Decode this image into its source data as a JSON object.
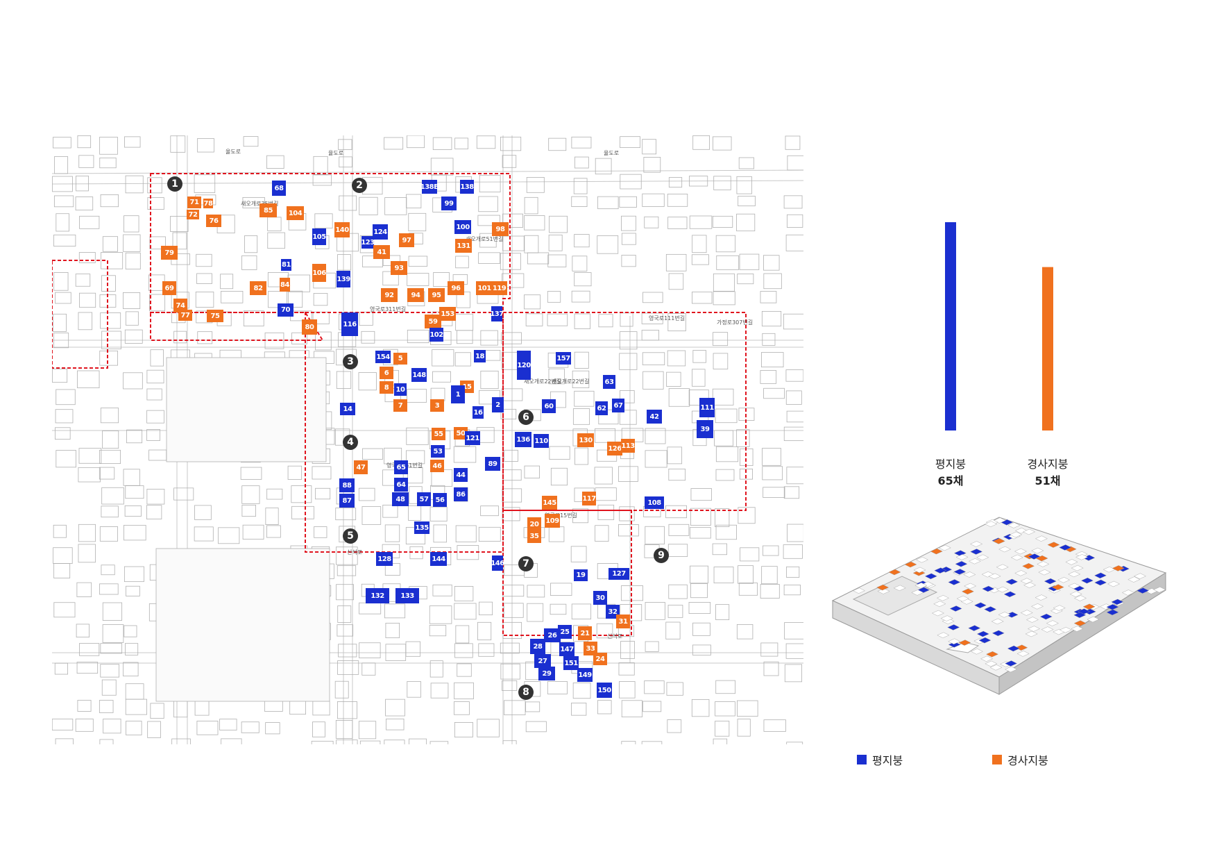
{
  "colors": {
    "flat": "#1a2fd0",
    "sloped": "#f0711e",
    "boundary": "#e0141e"
  },
  "blocks": [
    "1",
    "2",
    "3",
    "4",
    "5",
    "6",
    "7",
    "8",
    "9"
  ],
  "streets": [
    "율도로",
    "율도로",
    "율도로",
    "새오개로35번길",
    "새오개로51번길",
    "영국로311번길",
    "영국로111번길",
    "가정로307번길",
    "새오개로22번길",
    "영국로161번길",
    "영국로15번길",
    "신석로",
    "신석로",
    "새오개로22번길"
  ],
  "buildings": [
    {
      "id": "68",
      "roof": "flat"
    },
    {
      "id": "71",
      "roof": "sloped"
    },
    {
      "id": "78",
      "roof": "sloped"
    },
    {
      "id": "72",
      "roof": "sloped"
    },
    {
      "id": "76",
      "roof": "sloped"
    },
    {
      "id": "85",
      "roof": "sloped"
    },
    {
      "id": "104",
      "roof": "sloped"
    },
    {
      "id": "105",
      "roof": "flat"
    },
    {
      "id": "79",
      "roof": "sloped"
    },
    {
      "id": "81",
      "roof": "flat"
    },
    {
      "id": "106",
      "roof": "sloped"
    },
    {
      "id": "69",
      "roof": "sloped"
    },
    {
      "id": "82",
      "roof": "sloped"
    },
    {
      "id": "84",
      "roof": "sloped"
    },
    {
      "id": "74",
      "roof": "sloped"
    },
    {
      "id": "77",
      "roof": "sloped"
    },
    {
      "id": "75",
      "roof": "sloped"
    },
    {
      "id": "70",
      "roof": "flat"
    },
    {
      "id": "80",
      "roof": "sloped"
    },
    {
      "id": "138B",
      "roof": "flat"
    },
    {
      "id": "138",
      "roof": "flat"
    },
    {
      "id": "99",
      "roof": "flat"
    },
    {
      "id": "140",
      "roof": "sloped"
    },
    {
      "id": "124",
      "roof": "flat"
    },
    {
      "id": "123",
      "roof": "flat"
    },
    {
      "id": "100",
      "roof": "flat"
    },
    {
      "id": "98",
      "roof": "sloped"
    },
    {
      "id": "97",
      "roof": "sloped"
    },
    {
      "id": "41",
      "roof": "sloped"
    },
    {
      "id": "131",
      "roof": "sloped"
    },
    {
      "id": "139",
      "roof": "flat"
    },
    {
      "id": "93",
      "roof": "sloped"
    },
    {
      "id": "96",
      "roof": "sloped"
    },
    {
      "id": "101",
      "roof": "sloped"
    },
    {
      "id": "119",
      "roof": "sloped"
    },
    {
      "id": "92",
      "roof": "sloped"
    },
    {
      "id": "94",
      "roof": "sloped"
    },
    {
      "id": "95",
      "roof": "sloped"
    },
    {
      "id": "153",
      "roof": "sloped"
    },
    {
      "id": "59",
      "roof": "sloped"
    },
    {
      "id": "137",
      "roof": "flat"
    },
    {
      "id": "116",
      "roof": "flat"
    },
    {
      "id": "102",
      "roof": "flat"
    },
    {
      "id": "154",
      "roof": "flat"
    },
    {
      "id": "5",
      "roof": "sloped"
    },
    {
      "id": "18",
      "roof": "flat"
    },
    {
      "id": "6",
      "roof": "sloped"
    },
    {
      "id": "148",
      "roof": "flat"
    },
    {
      "id": "8",
      "roof": "sloped"
    },
    {
      "id": "10",
      "roof": "flat"
    },
    {
      "id": "15",
      "roof": "sloped"
    },
    {
      "id": "1",
      "roof": "flat"
    },
    {
      "id": "7",
      "roof": "sloped"
    },
    {
      "id": "3",
      "roof": "sloped"
    },
    {
      "id": "14",
      "roof": "flat"
    },
    {
      "id": "16",
      "roof": "flat"
    },
    {
      "id": "2",
      "roof": "flat"
    },
    {
      "id": "120",
      "roof": "flat"
    },
    {
      "id": "157",
      "roof": "flat"
    },
    {
      "id": "63",
      "roof": "flat"
    },
    {
      "id": "60",
      "roof": "flat"
    },
    {
      "id": "62",
      "roof": "flat"
    },
    {
      "id": "67",
      "roof": "flat"
    },
    {
      "id": "42",
      "roof": "flat"
    },
    {
      "id": "111",
      "roof": "flat"
    },
    {
      "id": "39",
      "roof": "flat"
    },
    {
      "id": "55",
      "roof": "sloped"
    },
    {
      "id": "50",
      "roof": "sloped"
    },
    {
      "id": "121",
      "roof": "flat"
    },
    {
      "id": "53",
      "roof": "flat"
    },
    {
      "id": "47",
      "roof": "sloped"
    },
    {
      "id": "65",
      "roof": "flat"
    },
    {
      "id": "46",
      "roof": "sloped"
    },
    {
      "id": "89",
      "roof": "flat"
    },
    {
      "id": "44",
      "roof": "flat"
    },
    {
      "id": "88",
      "roof": "flat"
    },
    {
      "id": "64",
      "roof": "flat"
    },
    {
      "id": "87",
      "roof": "flat"
    },
    {
      "id": "48",
      "roof": "flat"
    },
    {
      "id": "57",
      "roof": "flat"
    },
    {
      "id": "56",
      "roof": "flat"
    },
    {
      "id": "86",
      "roof": "flat"
    },
    {
      "id": "136",
      "roof": "flat"
    },
    {
      "id": "110",
      "roof": "flat"
    },
    {
      "id": "130",
      "roof": "sloped"
    },
    {
      "id": "126",
      "roof": "sloped"
    },
    {
      "id": "113",
      "roof": "sloped"
    },
    {
      "id": "145",
      "roof": "sloped"
    },
    {
      "id": "117",
      "roof": "sloped"
    },
    {
      "id": "108",
      "roof": "flat"
    },
    {
      "id": "20",
      "roof": "sloped"
    },
    {
      "id": "109",
      "roof": "sloped"
    },
    {
      "id": "35",
      "roof": "sloped"
    },
    {
      "id": "135",
      "roof": "flat"
    },
    {
      "id": "128",
      "roof": "flat"
    },
    {
      "id": "144",
      "roof": "flat"
    },
    {
      "id": "146",
      "roof": "flat"
    },
    {
      "id": "132",
      "roof": "flat"
    },
    {
      "id": "133",
      "roof": "flat"
    },
    {
      "id": "19",
      "roof": "flat"
    },
    {
      "id": "127",
      "roof": "flat"
    },
    {
      "id": "30",
      "roof": "flat"
    },
    {
      "id": "32",
      "roof": "flat"
    },
    {
      "id": "31",
      "roof": "sloped"
    },
    {
      "id": "26",
      "roof": "flat"
    },
    {
      "id": "25",
      "roof": "flat"
    },
    {
      "id": "21",
      "roof": "sloped"
    },
    {
      "id": "28",
      "roof": "flat"
    },
    {
      "id": "147",
      "roof": "flat"
    },
    {
      "id": "33",
      "roof": "sloped"
    },
    {
      "id": "27",
      "roof": "flat"
    },
    {
      "id": "151",
      "roof": "flat"
    },
    {
      "id": "24",
      "roof": "sloped"
    },
    {
      "id": "29",
      "roof": "flat"
    },
    {
      "id": "149",
      "roof": "flat"
    },
    {
      "id": "150",
      "roof": "flat"
    }
  ],
  "chart_data": {
    "type": "bar",
    "categories": [
      "평지붕",
      "경사지붕"
    ],
    "values": [
      65,
      51
    ],
    "value_labels": [
      "65채",
      "51채"
    ],
    "colors": [
      "#1a2fd0",
      "#f0711e"
    ]
  },
  "legend": [
    {
      "label": "평지붕",
      "color": "#1a2fd0"
    },
    {
      "label": "경사지붕",
      "color": "#f0711e"
    }
  ]
}
